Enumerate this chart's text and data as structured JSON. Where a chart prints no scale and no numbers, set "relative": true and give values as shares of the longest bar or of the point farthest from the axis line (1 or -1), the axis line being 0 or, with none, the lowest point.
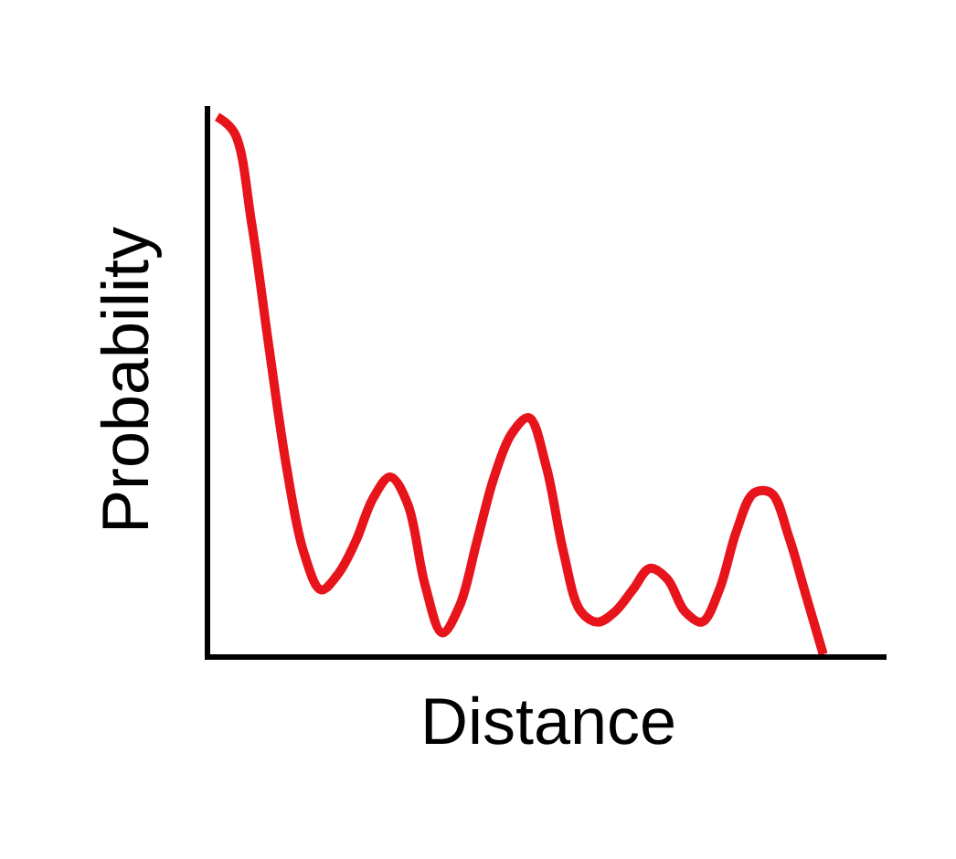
{
  "chart_data": {
    "type": "line",
    "xlabel": "Distance",
    "ylabel": "Probability",
    "relative": true,
    "marker": "none",
    "line_style": "solid",
    "categories": [
      null,
      null,
      null,
      null,
      null,
      null,
      null,
      null,
      null,
      null,
      null,
      null,
      null,
      null,
      null,
      null,
      null,
      null,
      null,
      null,
      null,
      null,
      null,
      null,
      null,
      null,
      null,
      null,
      null,
      null,
      null,
      null,
      null,
      null,
      null,
      null
    ],
    "series": [
      {
        "color": "#e8141b",
        "values": [
          1.0,
          0.97,
          0.8,
          0.57,
          0.35,
          0.19,
          0.12,
          0.15,
          0.21,
          0.29,
          0.33,
          0.28,
          0.13,
          0.04,
          0.09,
          0.21,
          0.33,
          0.41,
          0.44,
          0.35,
          0.19,
          0.08,
          0.06,
          0.08,
          0.12,
          0.16,
          0.14,
          0.08,
          0.06,
          0.12,
          0.23,
          0.3,
          0.3,
          0.22,
          0.11,
          0.0
        ]
      }
    ]
  }
}
